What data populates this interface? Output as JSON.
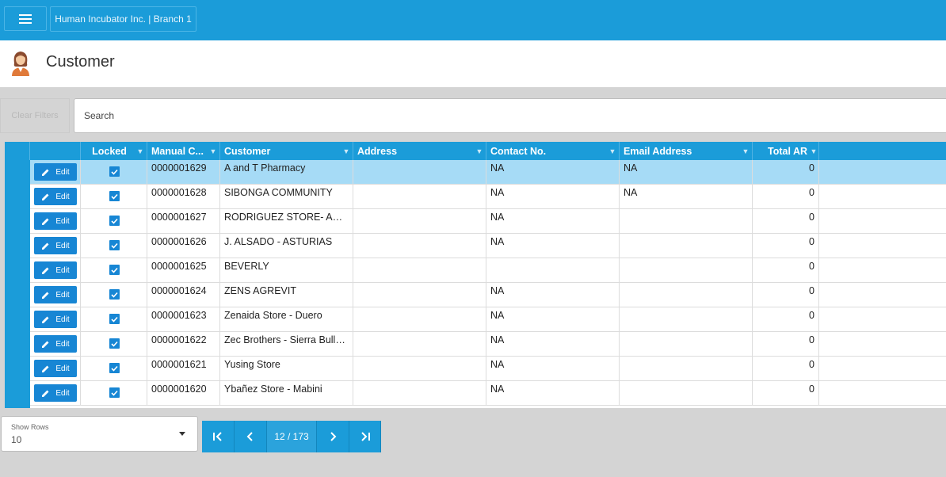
{
  "header": {
    "branch": "Human Incubator Inc. | Branch 1"
  },
  "page": {
    "title": "Customer"
  },
  "filters": {
    "clear_label": "Clear Filters",
    "search_placeholder": "Search"
  },
  "grid": {
    "columns": [
      "Locked",
      "Manual C...",
      "Customer",
      "Address",
      "Contact No.",
      "Email Address",
      "Total AR"
    ],
    "edit_label": "Edit",
    "rows": [
      {
        "locked": true,
        "code": "0000001629",
        "customer": "A and T Pharmacy",
        "address": "",
        "contact": "NA",
        "email": "NA",
        "total_ar": "0"
      },
      {
        "locked": true,
        "code": "0000001628",
        "customer": "SIBONGA COMMUNITY",
        "address": "",
        "contact": "NA",
        "email": "NA",
        "total_ar": "0"
      },
      {
        "locked": true,
        "code": "0000001627",
        "customer": "RODRIGUEZ STORE- ARGAO",
        "address": "",
        "contact": "NA",
        "email": "",
        "total_ar": "0"
      },
      {
        "locked": true,
        "code": "0000001626",
        "customer": "J. ALSADO - ASTURIAS",
        "address": "",
        "contact": "NA",
        "email": "",
        "total_ar": "0"
      },
      {
        "locked": true,
        "code": "0000001625",
        "customer": "BEVERLY",
        "address": "",
        "contact": "",
        "email": "",
        "total_ar": "0"
      },
      {
        "locked": true,
        "code": "0000001624",
        "customer": "ZENS AGREVIT",
        "address": "",
        "contact": "NA",
        "email": "",
        "total_ar": "0"
      },
      {
        "locked": true,
        "code": "0000001623",
        "customer": "Zenaida Store - Duero",
        "address": "",
        "contact": "NA",
        "email": "",
        "total_ar": "0"
      },
      {
        "locked": true,
        "code": "0000001622",
        "customer": "Zec Brothers - Sierra Bullo…",
        "address": "",
        "contact": "NA",
        "email": "",
        "total_ar": "0"
      },
      {
        "locked": true,
        "code": "0000001621",
        "customer": "Yusing Store",
        "address": "",
        "contact": "NA",
        "email": "",
        "total_ar": "0"
      },
      {
        "locked": true,
        "code": "0000001620",
        "customer": "Ybañez Store - Mabini",
        "address": "",
        "contact": "NA",
        "email": "",
        "total_ar": "0"
      }
    ],
    "selected_row": 0
  },
  "footer": {
    "show_rows_label": "Show Rows",
    "show_rows_value": "10",
    "page_info": "12 / 173"
  },
  "colors": {
    "accent": "#1b9cd9",
    "button": "#1786d4",
    "selected_row": "#a6dbf6"
  },
  "icons": [
    "menu-icon",
    "avatar-icon",
    "filter-icon",
    "pencil-icon",
    "checkbox-icon",
    "first-page-icon",
    "prev-page-icon",
    "next-page-icon",
    "last-page-icon",
    "dropdown-caret-icon"
  ]
}
